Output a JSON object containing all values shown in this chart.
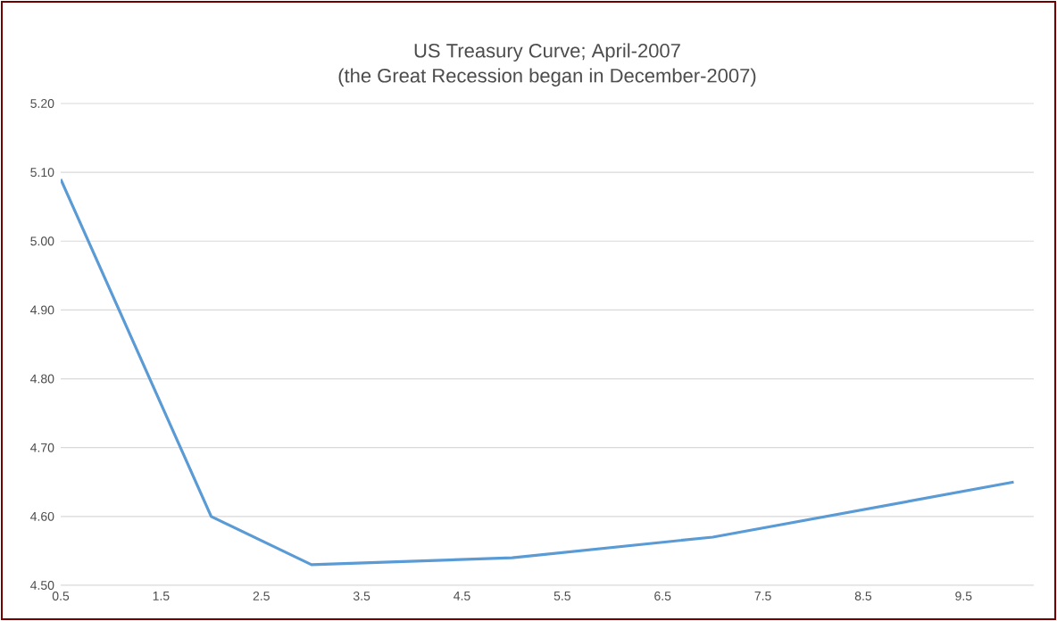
{
  "chart_data": {
    "type": "line",
    "title": "US Treasury Curve; April-2007",
    "subtitle": "(the Great Recession began in December-2007)",
    "x": [
      0.5,
      2,
      3,
      5,
      7,
      10
    ],
    "series": [
      {
        "color": "#5b9bd5",
        "values": [
          5.09,
          4.6,
          4.53,
          4.54,
          4.57,
          4.65
        ]
      }
    ],
    "xlim": [
      0.5,
      10.2
    ],
    "xticks": [
      0.5,
      1.5,
      2.5,
      3.5,
      4.5,
      5.5,
      6.5,
      7.5,
      8.5,
      9.5
    ],
    "ylim": [
      4.5,
      5.2
    ],
    "yticks": [
      {
        "value": 4.5,
        "label": "4.50"
      },
      {
        "value": 4.6,
        "label": "4.60"
      },
      {
        "value": 4.7,
        "label": "4.70"
      },
      {
        "value": 4.8,
        "label": "4.80"
      },
      {
        "value": 4.9,
        "label": "4.90"
      },
      {
        "value": 5.0,
        "label": "5.00"
      },
      {
        "value": 5.1,
        "label": "5.10"
      },
      {
        "value": 5.2,
        "label": "5.20"
      }
    ],
    "grid": "y",
    "marker": "none",
    "line_style": "solid"
  }
}
